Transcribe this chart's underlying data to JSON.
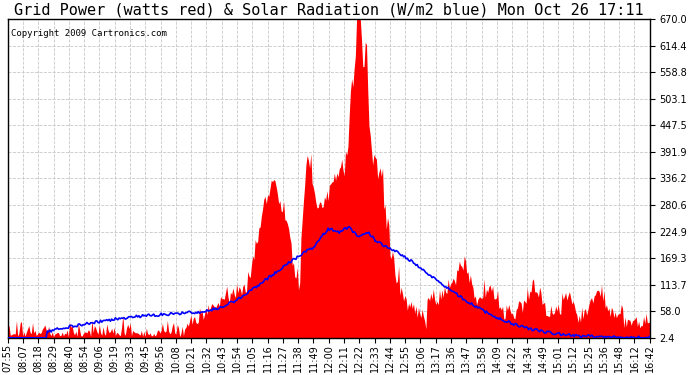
{
  "title": "Grid Power (watts red) & Solar Radiation (W/m2 blue) Mon Oct 26 17:11",
  "copyright_text": "Copyright 2009 Cartronics.com",
  "yticks": [
    2.4,
    58.0,
    113.7,
    169.3,
    224.9,
    280.6,
    336.2,
    391.9,
    447.5,
    503.1,
    558.8,
    614.4,
    670.0
  ],
  "ymin": 2.4,
  "ymax": 670.0,
  "xtick_labels": [
    "07:55",
    "08:07",
    "08:18",
    "08:29",
    "08:40",
    "08:54",
    "09:06",
    "09:19",
    "09:33",
    "09:45",
    "09:56",
    "10:08",
    "10:21",
    "10:32",
    "10:43",
    "10:54",
    "11:05",
    "11:16",
    "11:27",
    "11:38",
    "11:49",
    "12:00",
    "12:11",
    "12:22",
    "12:33",
    "12:44",
    "12:55",
    "13:06",
    "13:17",
    "13:36",
    "13:47",
    "13:58",
    "14:09",
    "14:22",
    "14:34",
    "14:49",
    "15:01",
    "15:12",
    "15:25",
    "15:36",
    "15:48",
    "16:12",
    "16:42"
  ],
  "red_fill_color": "#FF0000",
  "blue_line_color": "#0000FF",
  "background_color": "#FFFFFF",
  "grid_color": "#C8C8C8",
  "title_fontsize": 11,
  "axis_fontsize": 7,
  "copyright_fontsize": 6.5
}
